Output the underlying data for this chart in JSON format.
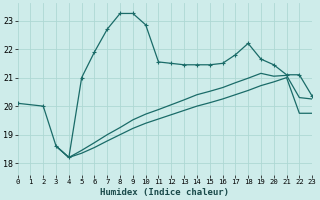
{
  "xlabel": "Humidex (Indice chaleur)",
  "bg_color": "#ceecea",
  "grid_color": "#aed8d4",
  "line_color": "#1a6b68",
  "x_ticks": [
    0,
    1,
    2,
    3,
    4,
    5,
    6,
    7,
    8,
    9,
    10,
    11,
    12,
    13,
    14,
    15,
    16,
    17,
    18,
    19,
    20,
    21,
    22,
    23
  ],
  "y_ticks": [
    18,
    19,
    20,
    21,
    22,
    23
  ],
  "xlim": [
    0,
    23
  ],
  "ylim": [
    17.6,
    23.6
  ],
  "curve1_x": [
    0,
    2,
    3,
    4,
    5,
    6,
    7,
    8,
    9,
    10,
    11,
    12,
    13,
    14,
    15,
    16,
    17,
    18,
    19,
    20,
    21,
    22,
    23
  ],
  "curve1_y": [
    20.1,
    20.0,
    18.6,
    18.2,
    21.0,
    21.9,
    22.7,
    23.25,
    23.25,
    22.85,
    21.55,
    21.5,
    21.45,
    21.45,
    21.45,
    21.5,
    21.8,
    22.2,
    21.65,
    21.45,
    21.1,
    21.1,
    20.35
  ],
  "curve2_x": [
    3,
    4,
    23
  ],
  "curve2_y": [
    18.6,
    18.2,
    20.25
  ],
  "curve3_x": [
    3,
    4,
    23
  ],
  "curve3_y": [
    18.6,
    18.2,
    19.75
  ],
  "curve2_full_x": [
    3,
    4,
    5,
    6,
    7,
    8,
    9,
    10,
    11,
    12,
    13,
    14,
    15,
    16,
    17,
    18,
    19,
    20,
    21,
    22,
    23
  ],
  "curve2_full_y": [
    18.6,
    18.2,
    18.45,
    18.72,
    19.0,
    19.25,
    19.52,
    19.72,
    19.88,
    20.05,
    20.22,
    20.4,
    20.52,
    20.65,
    20.82,
    20.98,
    21.15,
    21.05,
    21.08,
    20.3,
    20.25
  ],
  "curve3_full_x": [
    3,
    4,
    5,
    6,
    7,
    8,
    9,
    10,
    11,
    12,
    13,
    14,
    15,
    16,
    17,
    18,
    19,
    20,
    21,
    22,
    23
  ],
  "curve3_full_y": [
    18.6,
    18.2,
    18.35,
    18.55,
    18.78,
    19.0,
    19.22,
    19.4,
    19.55,
    19.7,
    19.85,
    20.0,
    20.12,
    20.25,
    20.4,
    20.55,
    20.72,
    20.85,
    21.0,
    19.75,
    19.75
  ]
}
